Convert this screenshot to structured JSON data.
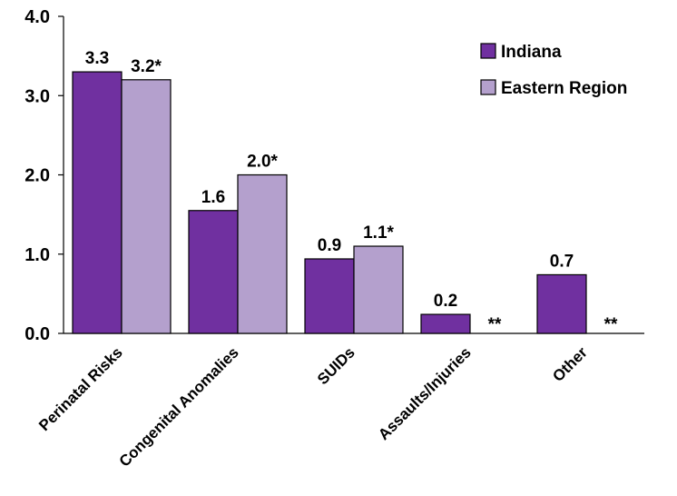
{
  "chart_data": {
    "type": "bar",
    "title": "",
    "xlabel": "",
    "ylabel": "",
    "ylim": [
      0,
      4
    ],
    "yticks": [
      "0.0",
      "1.0",
      "2.0",
      "3.0",
      "4.0"
    ],
    "categories": [
      "Perinatal Risks",
      "Congenital Anomalies",
      "SUIDs",
      "Assaults/Injuries",
      "Other"
    ],
    "series": [
      {
        "name": "Indiana",
        "color": "#7030a0",
        "values": [
          3.3,
          1.55,
          0.94,
          0.24,
          0.74
        ],
        "labels": [
          "3.3",
          "1.6",
          "0.9",
          "0.2",
          "0.7"
        ]
      },
      {
        "name": "Eastern Region",
        "color": "#b4a0cd",
        "values": [
          3.2,
          2.0,
          1.1,
          null,
          null
        ],
        "labels": [
          "3.2*",
          "2.0*",
          "1.1*",
          "**",
          "**"
        ]
      }
    ],
    "legend": "top-right",
    "grid": false
  }
}
